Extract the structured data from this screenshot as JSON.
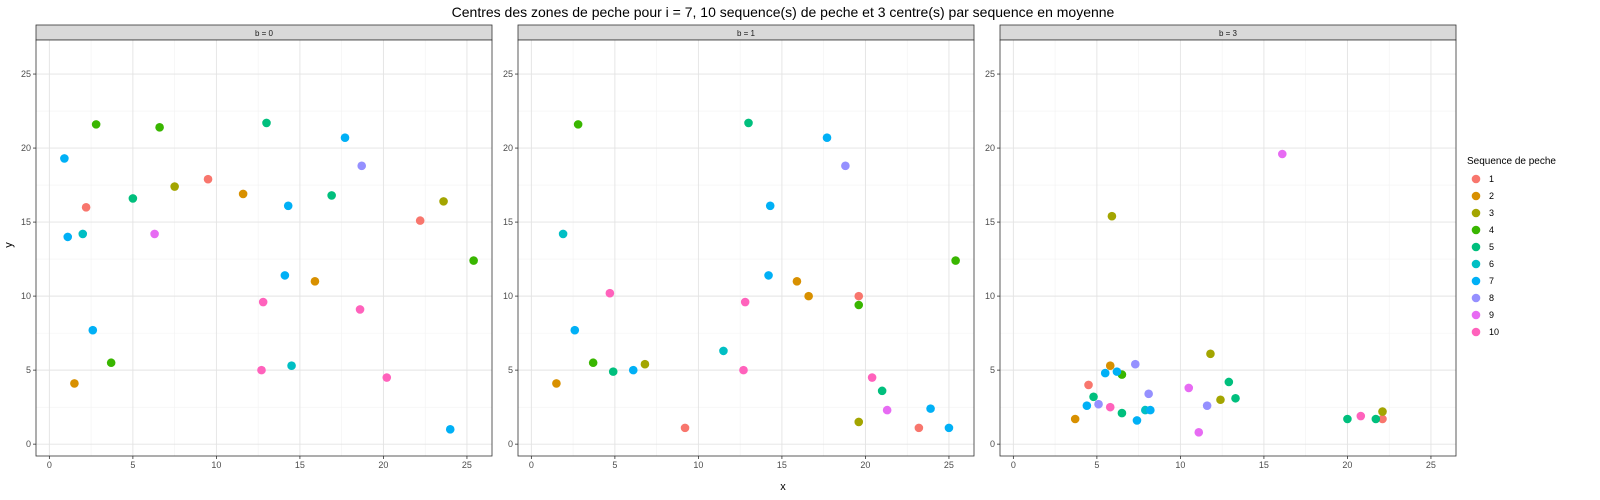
{
  "chart_data": {
    "type": "scatter",
    "title": "Centres des zones de peche pour i = 7, 10 sequence(s) de peche et 3 centre(s) par sequence en moyenne",
    "xlabel": "x",
    "ylabel": "y",
    "xlim": [
      -0.8,
      26.5
    ],
    "ylim": [
      -0.8,
      27.3
    ],
    "x_ticks": [
      "0",
      "5",
      "10",
      "15",
      "20",
      "25"
    ],
    "y_ticks": [
      "0",
      "5",
      "10",
      "15",
      "20",
      "25"
    ],
    "grid": true,
    "legend": {
      "title": "Sequence de peche",
      "placement": "right",
      "entries": [
        {
          "label": "1",
          "color": "#F8766D"
        },
        {
          "label": "2",
          "color": "#D89000"
        },
        {
          "label": "3",
          "color": "#A3A500"
        },
        {
          "label": "4",
          "color": "#39B600"
        },
        {
          "label": "5",
          "color": "#00BF7D"
        },
        {
          "label": "6",
          "color": "#00BFC4"
        },
        {
          "label": "7",
          "color": "#00B0F6"
        },
        {
          "label": "8",
          "color": "#9590FF"
        },
        {
          "label": "9",
          "color": "#E76BF3"
        },
        {
          "label": "10",
          "color": "#FF62BC"
        }
      ]
    },
    "panels": [
      {
        "label": "b = 0",
        "points": [
          {
            "x": 22.2,
            "y": 15.1,
            "seq": 1
          },
          {
            "x": 2.2,
            "y": 16.0,
            "seq": 1
          },
          {
            "x": 9.5,
            "y": 17.9,
            "seq": 1
          },
          {
            "x": 1.5,
            "y": 4.1,
            "seq": 2
          },
          {
            "x": 11.6,
            "y": 16.9,
            "seq": 2
          },
          {
            "x": 15.9,
            "y": 11.0,
            "seq": 2
          },
          {
            "x": 7.5,
            "y": 17.4,
            "seq": 3
          },
          {
            "x": 23.6,
            "y": 16.4,
            "seq": 3
          },
          {
            "x": 2.8,
            "y": 21.6,
            "seq": 4
          },
          {
            "x": 6.6,
            "y": 21.4,
            "seq": 4
          },
          {
            "x": 3.7,
            "y": 5.5,
            "seq": 4
          },
          {
            "x": 25.4,
            "y": 12.4,
            "seq": 4
          },
          {
            "x": 5.0,
            "y": 16.6,
            "seq": 5
          },
          {
            "x": 13.0,
            "y": 21.7,
            "seq": 5
          },
          {
            "x": 16.9,
            "y": 16.8,
            "seq": 5
          },
          {
            "x": 2.0,
            "y": 14.2,
            "seq": 6
          },
          {
            "x": 14.5,
            "y": 5.3,
            "seq": 6
          },
          {
            "x": 0.9,
            "y": 19.3,
            "seq": 7
          },
          {
            "x": 1.1,
            "y": 14.0,
            "seq": 7
          },
          {
            "x": 2.6,
            "y": 7.7,
            "seq": 7
          },
          {
            "x": 14.3,
            "y": 16.1,
            "seq": 7
          },
          {
            "x": 14.1,
            "y": 11.4,
            "seq": 7
          },
          {
            "x": 17.7,
            "y": 20.7,
            "seq": 7
          },
          {
            "x": 24.0,
            "y": 1.0,
            "seq": 7
          },
          {
            "x": 18.7,
            "y": 18.8,
            "seq": 8
          },
          {
            "x": 6.3,
            "y": 14.2,
            "seq": 9
          },
          {
            "x": 12.8,
            "y": 9.6,
            "seq": 10
          },
          {
            "x": 12.7,
            "y": 5.0,
            "seq": 10
          },
          {
            "x": 18.6,
            "y": 9.1,
            "seq": 10
          },
          {
            "x": 20.2,
            "y": 4.5,
            "seq": 10
          }
        ]
      },
      {
        "label": "b = 1",
        "points": [
          {
            "x": 9.2,
            "y": 1.1,
            "seq": 1
          },
          {
            "x": 19.6,
            "y": 10.0,
            "seq": 1
          },
          {
            "x": 23.2,
            "y": 1.1,
            "seq": 1
          },
          {
            "x": 1.5,
            "y": 4.1,
            "seq": 2
          },
          {
            "x": 15.9,
            "y": 11.0,
            "seq": 2
          },
          {
            "x": 16.6,
            "y": 10.0,
            "seq": 2
          },
          {
            "x": 6.8,
            "y": 5.4,
            "seq": 3
          },
          {
            "x": 19.6,
            "y": 1.5,
            "seq": 3
          },
          {
            "x": 2.8,
            "y": 21.6,
            "seq": 4
          },
          {
            "x": 3.7,
            "y": 5.5,
            "seq": 4
          },
          {
            "x": 19.6,
            "y": 9.4,
            "seq": 4
          },
          {
            "x": 25.4,
            "y": 12.4,
            "seq": 4
          },
          {
            "x": 4.9,
            "y": 4.9,
            "seq": 5
          },
          {
            "x": 13.0,
            "y": 21.7,
            "seq": 5
          },
          {
            "x": 21.0,
            "y": 3.6,
            "seq": 5
          },
          {
            "x": 1.9,
            "y": 14.2,
            "seq": 6
          },
          {
            "x": 11.5,
            "y": 6.3,
            "seq": 6
          },
          {
            "x": 2.6,
            "y": 7.7,
            "seq": 7
          },
          {
            "x": 6.1,
            "y": 5.0,
            "seq": 7
          },
          {
            "x": 14.3,
            "y": 16.1,
            "seq": 7
          },
          {
            "x": 14.2,
            "y": 11.4,
            "seq": 7
          },
          {
            "x": 17.7,
            "y": 20.7,
            "seq": 7
          },
          {
            "x": 23.9,
            "y": 2.4,
            "seq": 7
          },
          {
            "x": 25.0,
            "y": 1.1,
            "seq": 7
          },
          {
            "x": 18.8,
            "y": 18.8,
            "seq": 8
          },
          {
            "x": 21.3,
            "y": 2.3,
            "seq": 9
          },
          {
            "x": 4.7,
            "y": 10.2,
            "seq": 10
          },
          {
            "x": 12.8,
            "y": 9.6,
            "seq": 10
          },
          {
            "x": 12.7,
            "y": 5.0,
            "seq": 10
          },
          {
            "x": 20.4,
            "y": 4.5,
            "seq": 10
          }
        ]
      },
      {
        "label": "b = 3",
        "points": [
          {
            "x": 4.5,
            "y": 4.0,
            "seq": 1
          },
          {
            "x": 22.1,
            "y": 1.7,
            "seq": 1
          },
          {
            "x": 3.7,
            "y": 1.7,
            "seq": 2
          },
          {
            "x": 5.8,
            "y": 5.3,
            "seq": 2
          },
          {
            "x": 5.9,
            "y": 15.4,
            "seq": 3
          },
          {
            "x": 11.8,
            "y": 6.1,
            "seq": 3
          },
          {
            "x": 12.4,
            "y": 3.0,
            "seq": 3
          },
          {
            "x": 22.1,
            "y": 2.2,
            "seq": 3
          },
          {
            "x": 6.5,
            "y": 4.7,
            "seq": 4
          },
          {
            "x": 4.8,
            "y": 3.2,
            "seq": 5
          },
          {
            "x": 6.5,
            "y": 2.1,
            "seq": 5
          },
          {
            "x": 12.9,
            "y": 4.2,
            "seq": 5
          },
          {
            "x": 13.3,
            "y": 3.1,
            "seq": 5
          },
          {
            "x": 20.0,
            "y": 1.7,
            "seq": 5
          },
          {
            "x": 21.7,
            "y": 1.7,
            "seq": 5
          },
          {
            "x": 7.9,
            "y": 2.3,
            "seq": 6
          },
          {
            "x": 4.4,
            "y": 2.6,
            "seq": 7
          },
          {
            "x": 5.5,
            "y": 4.8,
            "seq": 7
          },
          {
            "x": 6.2,
            "y": 4.9,
            "seq": 7
          },
          {
            "x": 7.4,
            "y": 1.6,
            "seq": 7
          },
          {
            "x": 8.2,
            "y": 2.3,
            "seq": 7
          },
          {
            "x": 5.1,
            "y": 2.7,
            "seq": 8
          },
          {
            "x": 7.3,
            "y": 5.4,
            "seq": 8
          },
          {
            "x": 8.1,
            "y": 3.4,
            "seq": 8
          },
          {
            "x": 11.6,
            "y": 2.6,
            "seq": 8
          },
          {
            "x": 10.5,
            "y": 3.8,
            "seq": 9
          },
          {
            "x": 11.1,
            "y": 0.8,
            "seq": 9
          },
          {
            "x": 16.1,
            "y": 19.6,
            "seq": 9
          },
          {
            "x": 5.8,
            "y": 2.5,
            "seq": 10
          },
          {
            "x": 20.8,
            "y": 1.9,
            "seq": 10
          }
        ]
      }
    ]
  }
}
